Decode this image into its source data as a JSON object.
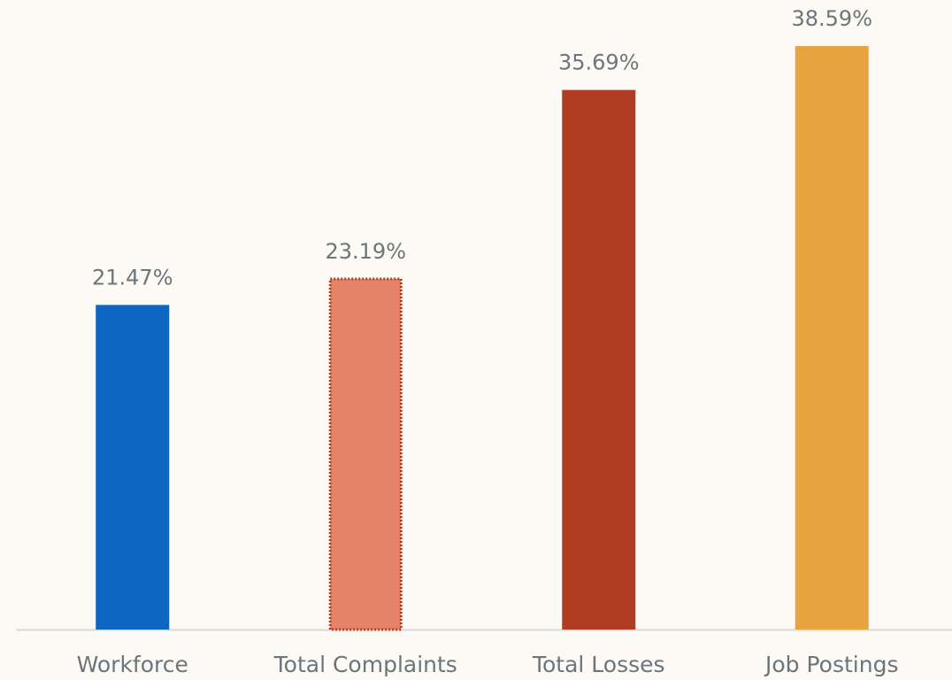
{
  "chart_data": {
    "type": "bar",
    "categories": [
      "Workforce",
      "Total Complaints",
      "Total Losses",
      "Job Postings"
    ],
    "values": [
      21.47,
      23.19,
      35.69,
      38.59
    ],
    "value_labels": [
      "21.47%",
      "23.19%",
      "35.69%",
      "38.59%"
    ],
    "colors": [
      "#0d67c2",
      "#e48367",
      "#b03d21",
      "#e6a33e"
    ],
    "ylim": [
      0,
      40
    ]
  }
}
